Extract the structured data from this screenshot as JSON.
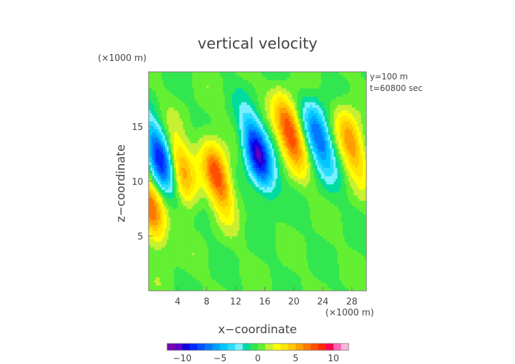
{
  "chart_data": {
    "type": "heatmap",
    "title": "vertical velocity",
    "xlabel": "x−coordinate",
    "ylabel": "z−coordinate",
    "x_unit_label": "(×1000 m)",
    "y_unit_label": "(×1000 m)",
    "annotations": [
      "y=100 m",
      "t=60800 sec"
    ],
    "xlim": [
      0,
      30
    ],
    "ylim": [
      0,
      20
    ],
    "xticks": [
      4,
      8,
      12,
      16,
      20,
      24,
      28
    ],
    "yticks": [
      5,
      10,
      15
    ],
    "xtick_labels": [
      "4",
      "8",
      "12",
      "16",
      "20",
      "24",
      "28"
    ],
    "ytick_labels": [
      "5",
      "10",
      "15"
    ],
    "colorbar": {
      "range": [
        -12,
        12
      ],
      "levels": 24,
      "ticks": [
        -10,
        -5,
        0,
        5,
        10
      ],
      "tick_labels": [
        "−10",
        "−5",
        "0",
        "5",
        "10"
      ],
      "colors": [
        "#7a00b4",
        "#5a00c8",
        "#1400dc",
        "#0028ff",
        "#0050ff",
        "#0078ff",
        "#00a0ff",
        "#00c8ff",
        "#28dcff",
        "#78f0ff",
        "#00dca0",
        "#32e650",
        "#64f032",
        "#c8f032",
        "#ffff00",
        "#ffe600",
        "#ffc800",
        "#ffa000",
        "#ff7800",
        "#ff5000",
        "#ff2800",
        "#ff0050",
        "#ff64b4",
        "#ffb4dc"
      ]
    },
    "features": [
      {
        "kind": "downdraft",
        "x": 1.6,
        "z": 12.0,
        "peak": -9
      },
      {
        "kind": "updraft",
        "x": 4.5,
        "z": 11.0,
        "peak": 6
      },
      {
        "kind": "updraft",
        "x": 9.5,
        "z": 10.5,
        "peak": 8
      },
      {
        "kind": "downdraft",
        "x": 15.0,
        "z": 12.5,
        "peak": -10
      },
      {
        "kind": "updraft",
        "x": 19.5,
        "z": 14.5,
        "peak": 8
      },
      {
        "kind": "downdraft",
        "x": 23.5,
        "z": 14.0,
        "peak": -7
      },
      {
        "kind": "updraft",
        "x": 28.0,
        "z": 13.5,
        "peak": 6
      },
      {
        "kind": "updraft",
        "x": 0.3,
        "z": 7.5,
        "peak": 7
      }
    ]
  }
}
